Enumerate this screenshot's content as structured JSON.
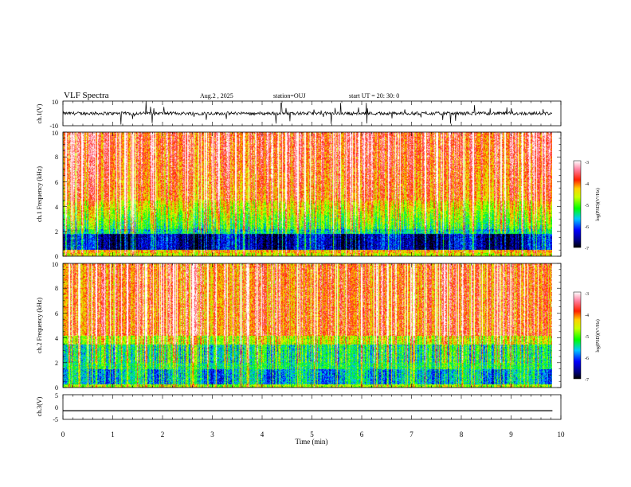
{
  "header": {
    "title": "VLF Spectra",
    "date": "Aug.2 , 2025",
    "station": "station=OUJ",
    "start": "start UT = 20: 30: 0"
  },
  "chart_data": [
    {
      "type": "line",
      "name": "ch1-waveform",
      "ylabel": "ch.1(V)",
      "ylim": [
        -10,
        10
      ],
      "yticks": [
        "10",
        "-10"
      ],
      "xlim": [
        0,
        10
      ],
      "series": [
        {
          "name": "ch.1",
          "trend": "noisy waveform centred near 0 V with frequent spikes",
          "baseline": 0
        }
      ]
    },
    {
      "type": "heatmap",
      "name": "ch1-spectrogram",
      "ylabel": "ch.1 Frequency (kHz)",
      "ylim": [
        0,
        10
      ],
      "yticks": [
        "0",
        "2",
        "4",
        "6",
        "8",
        "10"
      ],
      "xlim": [
        0,
        9.83
      ],
      "colorbar": {
        "label": "log(PSD)(V²/Hz)",
        "range": [
          -7,
          -3
        ],
        "ticks": [
          "-3",
          "-4",
          "-5",
          "-6",
          "-7"
        ]
      },
      "summary": "high power (red/yellow) above ~3 kHz, green 2-5 kHz, low power (blue) band 0.5-1.8 kHz"
    },
    {
      "type": "heatmap",
      "name": "ch2-spectrogram",
      "ylabel": "ch.2 Frequency (kHz)",
      "ylim": [
        0,
        10
      ],
      "yticks": [
        "0",
        "2",
        "4",
        "6",
        "8",
        "10"
      ],
      "xlim": [
        0,
        9.83
      ],
      "colorbar": {
        "label": "log(PSD)(V²/Hz)",
        "range": [
          -7,
          -3
        ],
        "ticks": [
          "-3",
          "-4",
          "-5",
          "-6",
          "-7"
        ]
      },
      "summary": "high power (red) above ~3.5 kHz, green 0.5-3.5 kHz with blue patches"
    },
    {
      "type": "line",
      "name": "ch3-waveform",
      "ylabel": "ch.3(V)",
      "ylim": [
        -5,
        5
      ],
      "yticks": [
        "5",
        "0",
        "-5"
      ],
      "xlim": [
        0,
        10
      ],
      "series": [
        {
          "name": "ch.3",
          "trend": "flat line",
          "value": -1.5
        }
      ]
    }
  ],
  "xaxis": {
    "label": "Time (min)",
    "ticks": [
      "0",
      "1",
      "2",
      "3",
      "4",
      "5",
      "6",
      "7",
      "8",
      "9",
      "10"
    ],
    "range": [
      0,
      10
    ]
  },
  "colors": {
    "axis": "#000000",
    "colormap": [
      "#000080",
      "#0000ff",
      "#00a0ff",
      "#00ffff",
      "#00ff00",
      "#80ff00",
      "#ffff00",
      "#ffa000",
      "#ff0000",
      "#ff60a0",
      "#ffffff"
    ]
  }
}
